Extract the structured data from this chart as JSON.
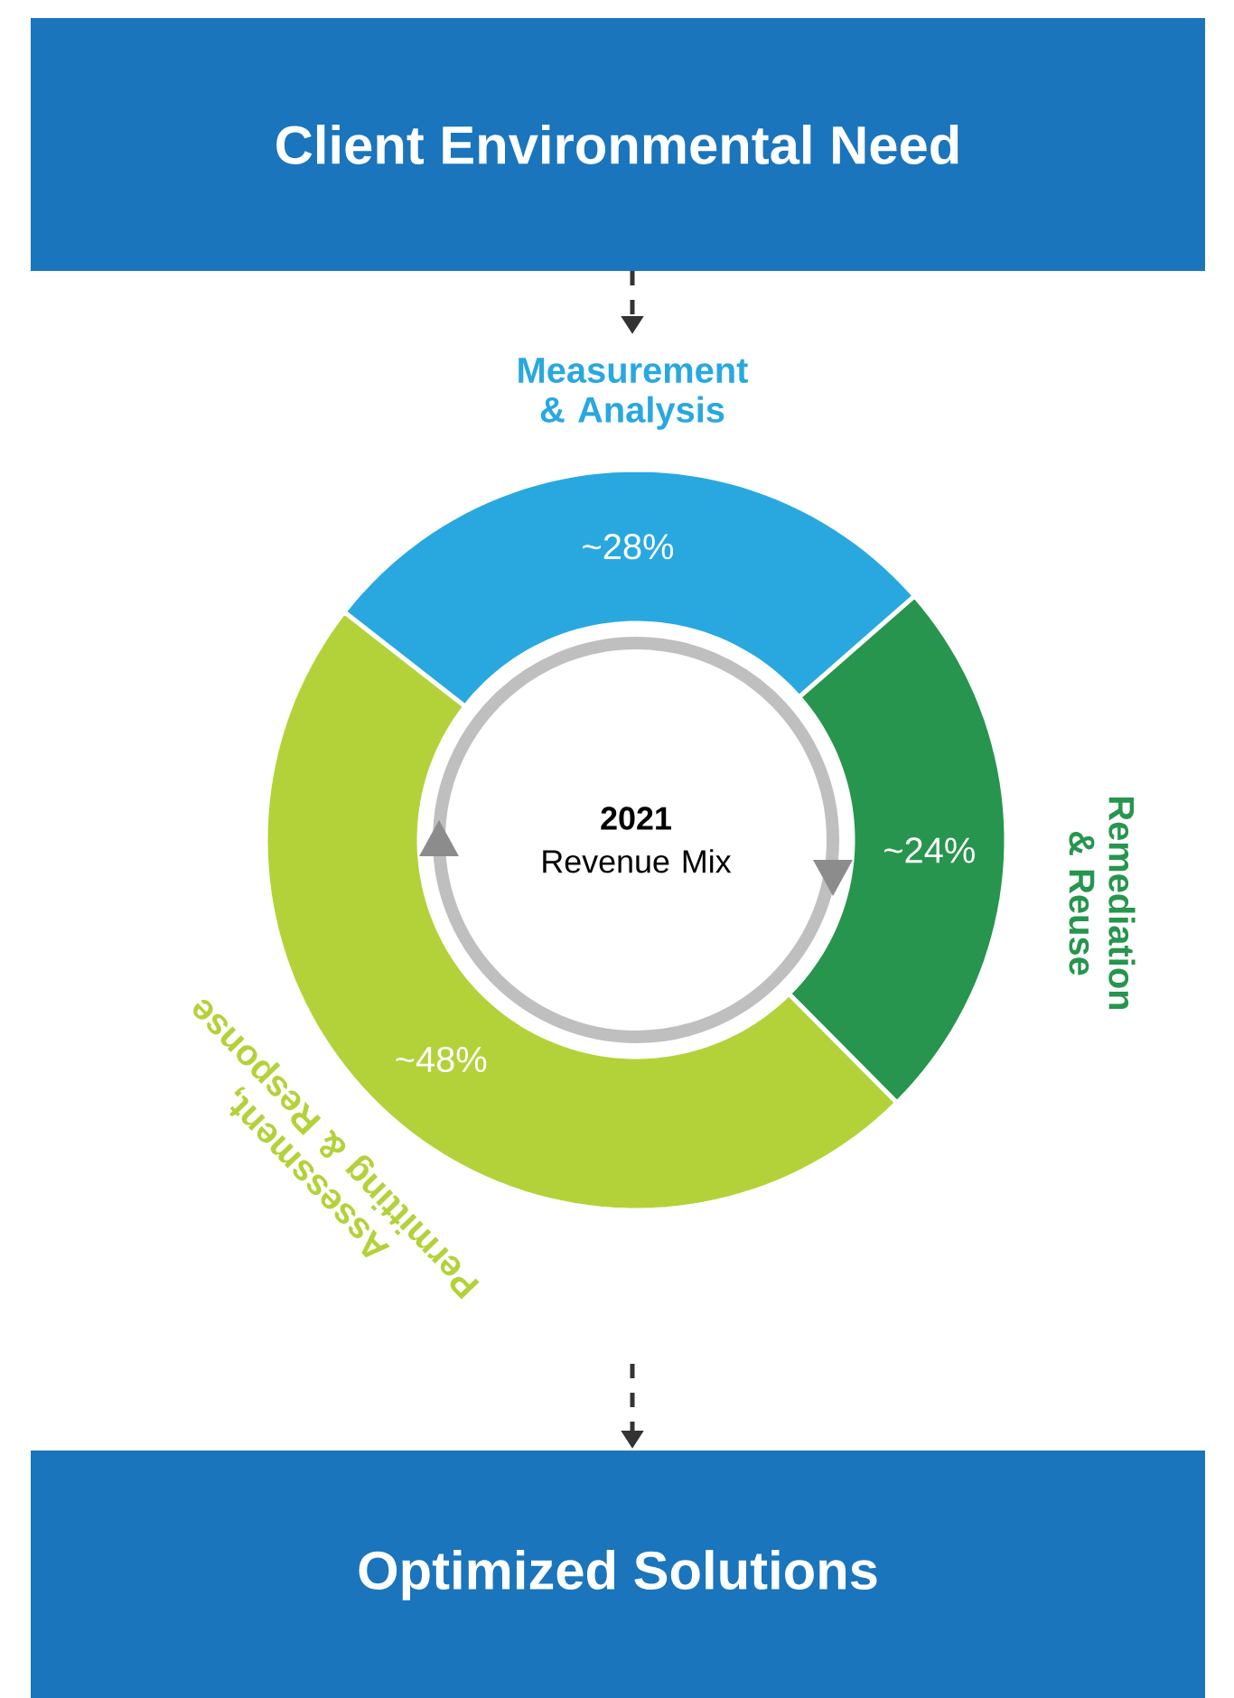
{
  "chart_data": {
    "type": "donut",
    "title": "Client Environmental Need",
    "categories": [
      "Measurement & Analysis",
      "Remediation & Reuse",
      "Assessment, Permitting & Response"
    ],
    "values": [
      28,
      24,
      48
    ],
    "colors": [
      "#29a8e0",
      "#27954e",
      "#b3d23a"
    ],
    "value_labels": [
      "~28%",
      "~24%",
      "~48%"
    ],
    "annotations": [
      "**2021** Revenue Mix",
      "Optimized Solutions"
    ]
  }
}
